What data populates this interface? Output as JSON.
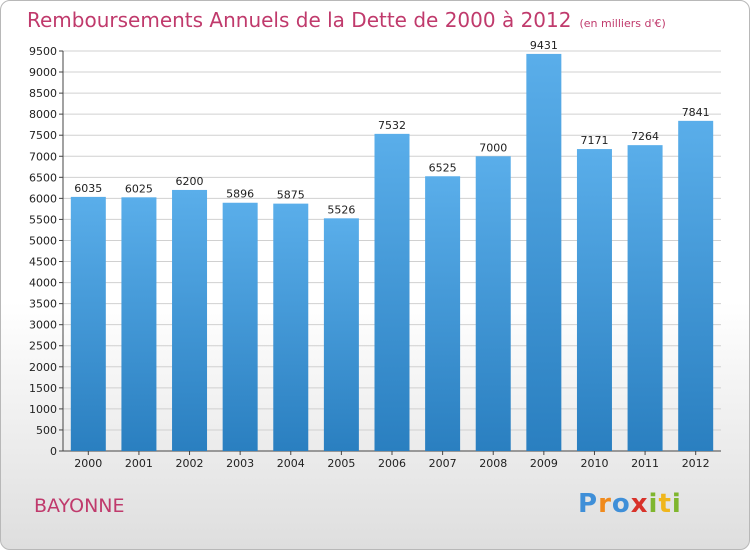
{
  "chart_data": {
    "type": "bar",
    "title": "Remboursements Annuels de la Dette de 2000 à 2012",
    "subtitle": "(en milliers d'€)",
    "categories": [
      "2000",
      "2001",
      "2002",
      "2003",
      "2004",
      "2005",
      "2006",
      "2007",
      "2008",
      "2009",
      "2010",
      "2011",
      "2012"
    ],
    "values": [
      6035,
      6025,
      6200,
      5896,
      5875,
      5526,
      7532,
      6525,
      7000,
      9431,
      7171,
      7264,
      7841
    ],
    "ylim": [
      0,
      9500
    ],
    "yticks": [
      0,
      500,
      1000,
      1500,
      2000,
      2500,
      3000,
      3500,
      4000,
      4500,
      5000,
      5500,
      6000,
      6500,
      7000,
      7500,
      8000,
      8500,
      9000,
      9500
    ],
    "grid": true,
    "colors": {
      "bar_top": "#5aaeea",
      "bar_bottom": "#2a7fc0",
      "grid": "#d0d0d0",
      "accent": "#c03a6c"
    }
  },
  "footer": {
    "city": "BAYONNE",
    "logo": {
      "letters": [
        "P",
        "r",
        "o",
        "x",
        "i",
        "t",
        "i"
      ],
      "colors": [
        "#3f8fd8",
        "#f08a1c",
        "#3f8fd8",
        "#d8322a",
        "#7fb62e",
        "#f0b61c",
        "#7fb62e"
      ]
    }
  }
}
